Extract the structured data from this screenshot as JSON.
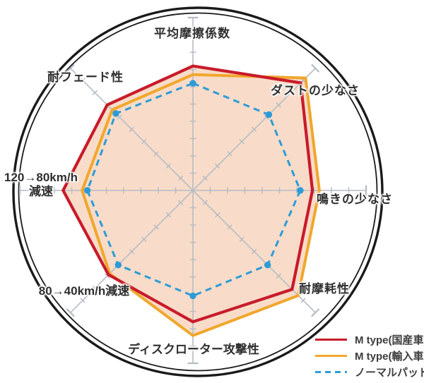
{
  "chart_data": {
    "type": "radar",
    "title": "",
    "categories": [
      "平均摩擦係数",
      "ダストの少なさ",
      "鳴きの少なさ",
      "耐摩耗性",
      "ディスクローター攻撃性",
      "80→40km/h減速",
      "120→80km/h減速",
      "耐フェード性"
    ],
    "series": [
      {
        "name": "M type(国産車)",
        "color": "#c81b2a",
        "style": "solid",
        "values": [
          7.2,
          8.8,
          6.9,
          8.1,
          7.6,
          6.9,
          7.5,
          7.0
        ]
      },
      {
        "name": "M type(輸入車)",
        "color": "#f0a72c",
        "style": "solid",
        "values": [
          6.7,
          9.2,
          7.3,
          8.6,
          8.4,
          6.8,
          6.4,
          6.6
        ]
      },
      {
        "name": "ノーマルパッド",
        "color": "#2d9bd6",
        "style": "dashed",
        "values": [
          6.2,
          6.2,
          6.2,
          6.1,
          6.1,
          6.1,
          6.1,
          6.3
        ]
      }
    ],
    "scale_max": 10,
    "ticks_per_axis": 10,
    "fill_color": "#f8dcc9",
    "axis_color": "#b6bcc4",
    "frame_color": "#1a1a1a",
    "grid": "spoke-ticks-no-rings",
    "legend_position": "bottom-right"
  },
  "labels": {
    "n": "平均摩擦係数",
    "ne": "ダストの少なさ",
    "e": "鳴きの少なさ",
    "se": "耐摩耗性",
    "s": "ディスクローター攻撃性",
    "sw": "80→40km/h減速",
    "w_line1": "120→80km/h",
    "w_line2": "減速",
    "nw": "耐フェード性"
  }
}
